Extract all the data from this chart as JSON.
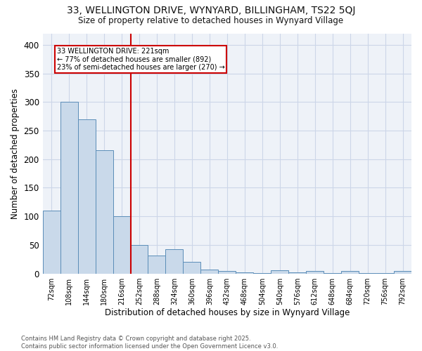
{
  "title_line1": "33, WELLINGTON DRIVE, WYNYARD, BILLINGHAM, TS22 5QJ",
  "title_line2": "Size of property relative to detached houses in Wynyard Village",
  "xlabel": "Distribution of detached houses by size in Wynyard Village",
  "ylabel": "Number of detached properties",
  "footer": "Contains HM Land Registry data © Crown copyright and database right 2025.\nContains public sector information licensed under the Open Government Licence v3.0.",
  "bin_labels": [
    "72sqm",
    "108sqm",
    "144sqm",
    "180sqm",
    "216sqm",
    "252sqm",
    "288sqm",
    "324sqm",
    "360sqm",
    "396sqm",
    "432sqm",
    "468sqm",
    "504sqm",
    "540sqm",
    "576sqm",
    "612sqm",
    "648sqm",
    "684sqm",
    "720sqm",
    "756sqm",
    "792sqm"
  ],
  "bar_values": [
    110,
    300,
    270,
    215,
    100,
    50,
    32,
    42,
    20,
    7,
    5,
    2,
    1,
    6,
    2,
    4,
    1,
    4,
    1,
    1,
    4
  ],
  "bar_color": "#c9d9ea",
  "bar_edge_color": "#5b8db8",
  "vline_index": 4,
  "annotation_line1": "33 WELLINGTON DRIVE: 221sqm",
  "annotation_line2": "← 77% of detached houses are smaller (892)",
  "annotation_line3": "23% of semi-detached houses are larger (270) →",
  "annotation_box_color": "#ffffff",
  "annotation_box_edge": "#cc0000",
  "vline_color": "#cc0000",
  "ylim": [
    0,
    420
  ],
  "yticks": [
    0,
    50,
    100,
    150,
    200,
    250,
    300,
    350,
    400
  ],
  "grid_color": "#ccd6e8",
  "bg_color": "#eef2f8",
  "fig_bg_color": "#ffffff"
}
